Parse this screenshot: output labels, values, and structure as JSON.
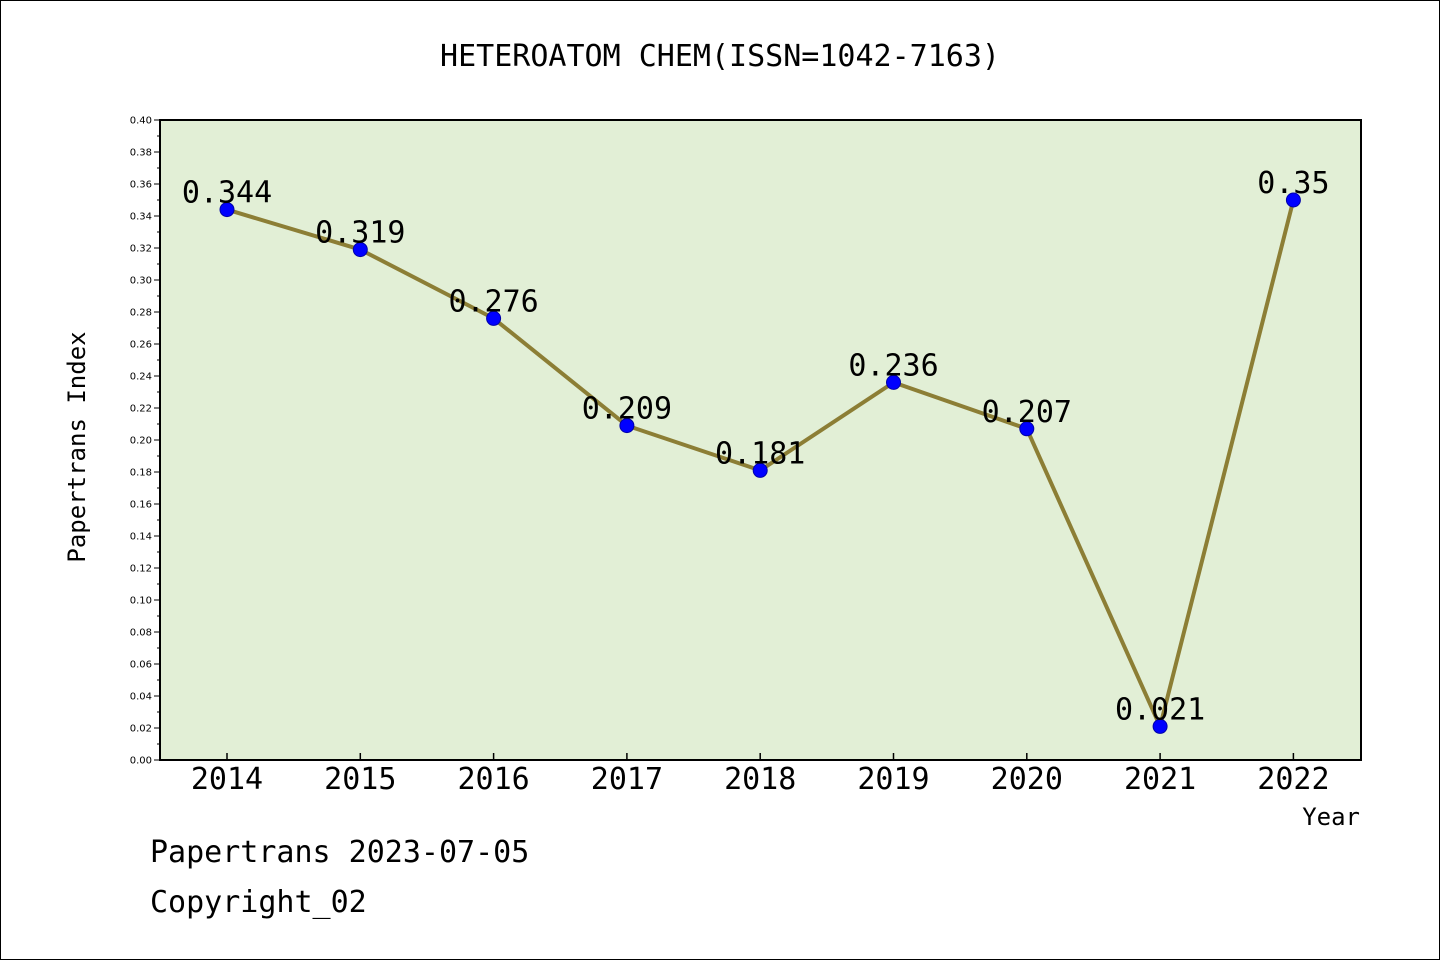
{
  "chart_data": {
    "type": "line",
    "title": "HETEROATOM CHEM(ISSN=1042-7163)",
    "xlabel": "Year",
    "ylabel": "Papertrans Index",
    "categories": [
      "2014",
      "2015",
      "2016",
      "2017",
      "2018",
      "2019",
      "2020",
      "2021",
      "2022"
    ],
    "series": [
      {
        "values": [
          0.344,
          0.319,
          0.276,
          0.209,
          0.181,
          0.236,
          0.207,
          0.021,
          0.35
        ]
      }
    ],
    "data_labels": [
      "0.344",
      "0.319",
      "0.276",
      "0.209",
      "0.181",
      "0.236",
      "0.207",
      "0.021",
      "0.35"
    ],
    "ylim": [
      0,
      0.4
    ],
    "ytick_step": 0.02,
    "ytick_labels": [
      "0.00",
      "0.02",
      "0.04",
      "0.06",
      "0.08",
      "0.10",
      "0.12",
      "0.14",
      "0.16",
      "0.18",
      "0.20",
      "0.22",
      "0.24",
      "0.26",
      "0.28",
      "0.30",
      "0.32",
      "0.34",
      "0.36",
      "0.38",
      "0.40"
    ],
    "grid": false,
    "legend": "none",
    "colors": {
      "background": "#e2efd6",
      "line": "#8c7e35",
      "marker": "#0000ff"
    }
  },
  "footer": {
    "line1": "Papertrans 2023-07-05",
    "line2": "Copyright_02"
  }
}
